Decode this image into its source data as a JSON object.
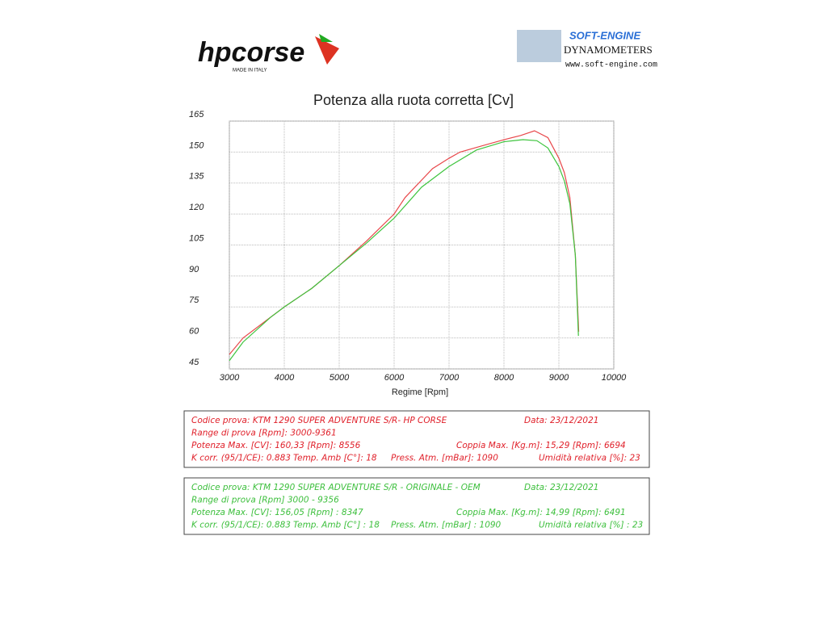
{
  "header": {
    "left_logo": "hpcorse",
    "left_logo_sub": "MADE IN ITALY",
    "right_logo": "SOFT-ENGINE",
    "right_logo_sub": "DYNAMOMETERS",
    "right_logo_url": "www.soft-engine.com"
  },
  "chart_data": {
    "type": "line",
    "title": "Potenza alla ruota corretta [Cv]",
    "x_label": "Regime [Rpm]",
    "xlim": [
      3000,
      10000
    ],
    "xticks": [
      3000,
      4000,
      5000,
      6000,
      7000,
      8000,
      9000,
      10000
    ],
    "ylim": [
      45,
      165
    ],
    "yticks": [
      45,
      60,
      75,
      90,
      105,
      120,
      135,
      150,
      165
    ],
    "grid": true,
    "series": [
      {
        "color": "#e8474a",
        "x": [
          3000,
          3250,
          3750,
          4000,
          4500,
          5000,
          5500,
          6000,
          6200,
          6700,
          7000,
          7200,
          7600,
          8000,
          8300,
          8556,
          8800,
          9000,
          9100,
          9200,
          9300,
          9361
        ],
        "values": [
          52,
          60,
          70,
          75,
          84,
          95,
          107,
          120,
          128,
          142,
          147,
          150,
          153,
          156,
          158,
          160.3,
          157,
          147,
          140,
          128,
          100,
          63
        ]
      },
      {
        "color": "#3ec43e",
        "x": [
          3000,
          3250,
          3750,
          4000,
          4500,
          5000,
          5500,
          6000,
          6500,
          7000,
          7500,
          8000,
          8347,
          8600,
          8800,
          9000,
          9100,
          9200,
          9300,
          9356
        ],
        "values": [
          49,
          58,
          70,
          75,
          84,
          95,
          106,
          118,
          133,
          143,
          151,
          155,
          156,
          155.5,
          152,
          143,
          136,
          125,
          100,
          61
        ]
      }
    ]
  },
  "info_boxes": [
    {
      "color": "#e0202a",
      "lines": [
        [
          "Codice prova: KTM 1290 SUPER ADVENTURE S/R- HP CORSE",
          "Data: 23/12/2021"
        ],
        [
          "Range di prova [Rpm]: 3000-9361"
        ],
        [
          "Potenza Max. [CV]:  160,33 [Rpm]: 8556",
          "Coppia Max. [Kg.m]:  15,29  [Rpm]: 6694"
        ],
        [
          "K corr. (95/1/CE): 0.883",
          "Temp. Amb [C°]: 18",
          "Press. Atm.  [mBar]: 1090",
          "Umidità relativa [%]: 23"
        ]
      ]
    },
    {
      "color": "#3cbf3c",
      "lines": [
        [
          "Codice prova: KTM 1290 SUPER ADVENTURE S/R - ORIGINALE - OEM",
          "Data: 23/12/2021"
        ],
        [
          "Range di prova [Rpm] 3000 - 9356"
        ],
        [
          "Potenza Max. [CV]:  156,05  [Rpm] : 8347",
          "Coppia Max.  [Kg.m]:  14,99  [Rpm]: 6491"
        ],
        [
          "K corr.  (95/1/CE): 0.883",
          "Temp. Amb [C°] : 18",
          "Press. Atm. [mBar] : 1090",
          "Umidità relativa [%] : 23"
        ]
      ]
    }
  ]
}
